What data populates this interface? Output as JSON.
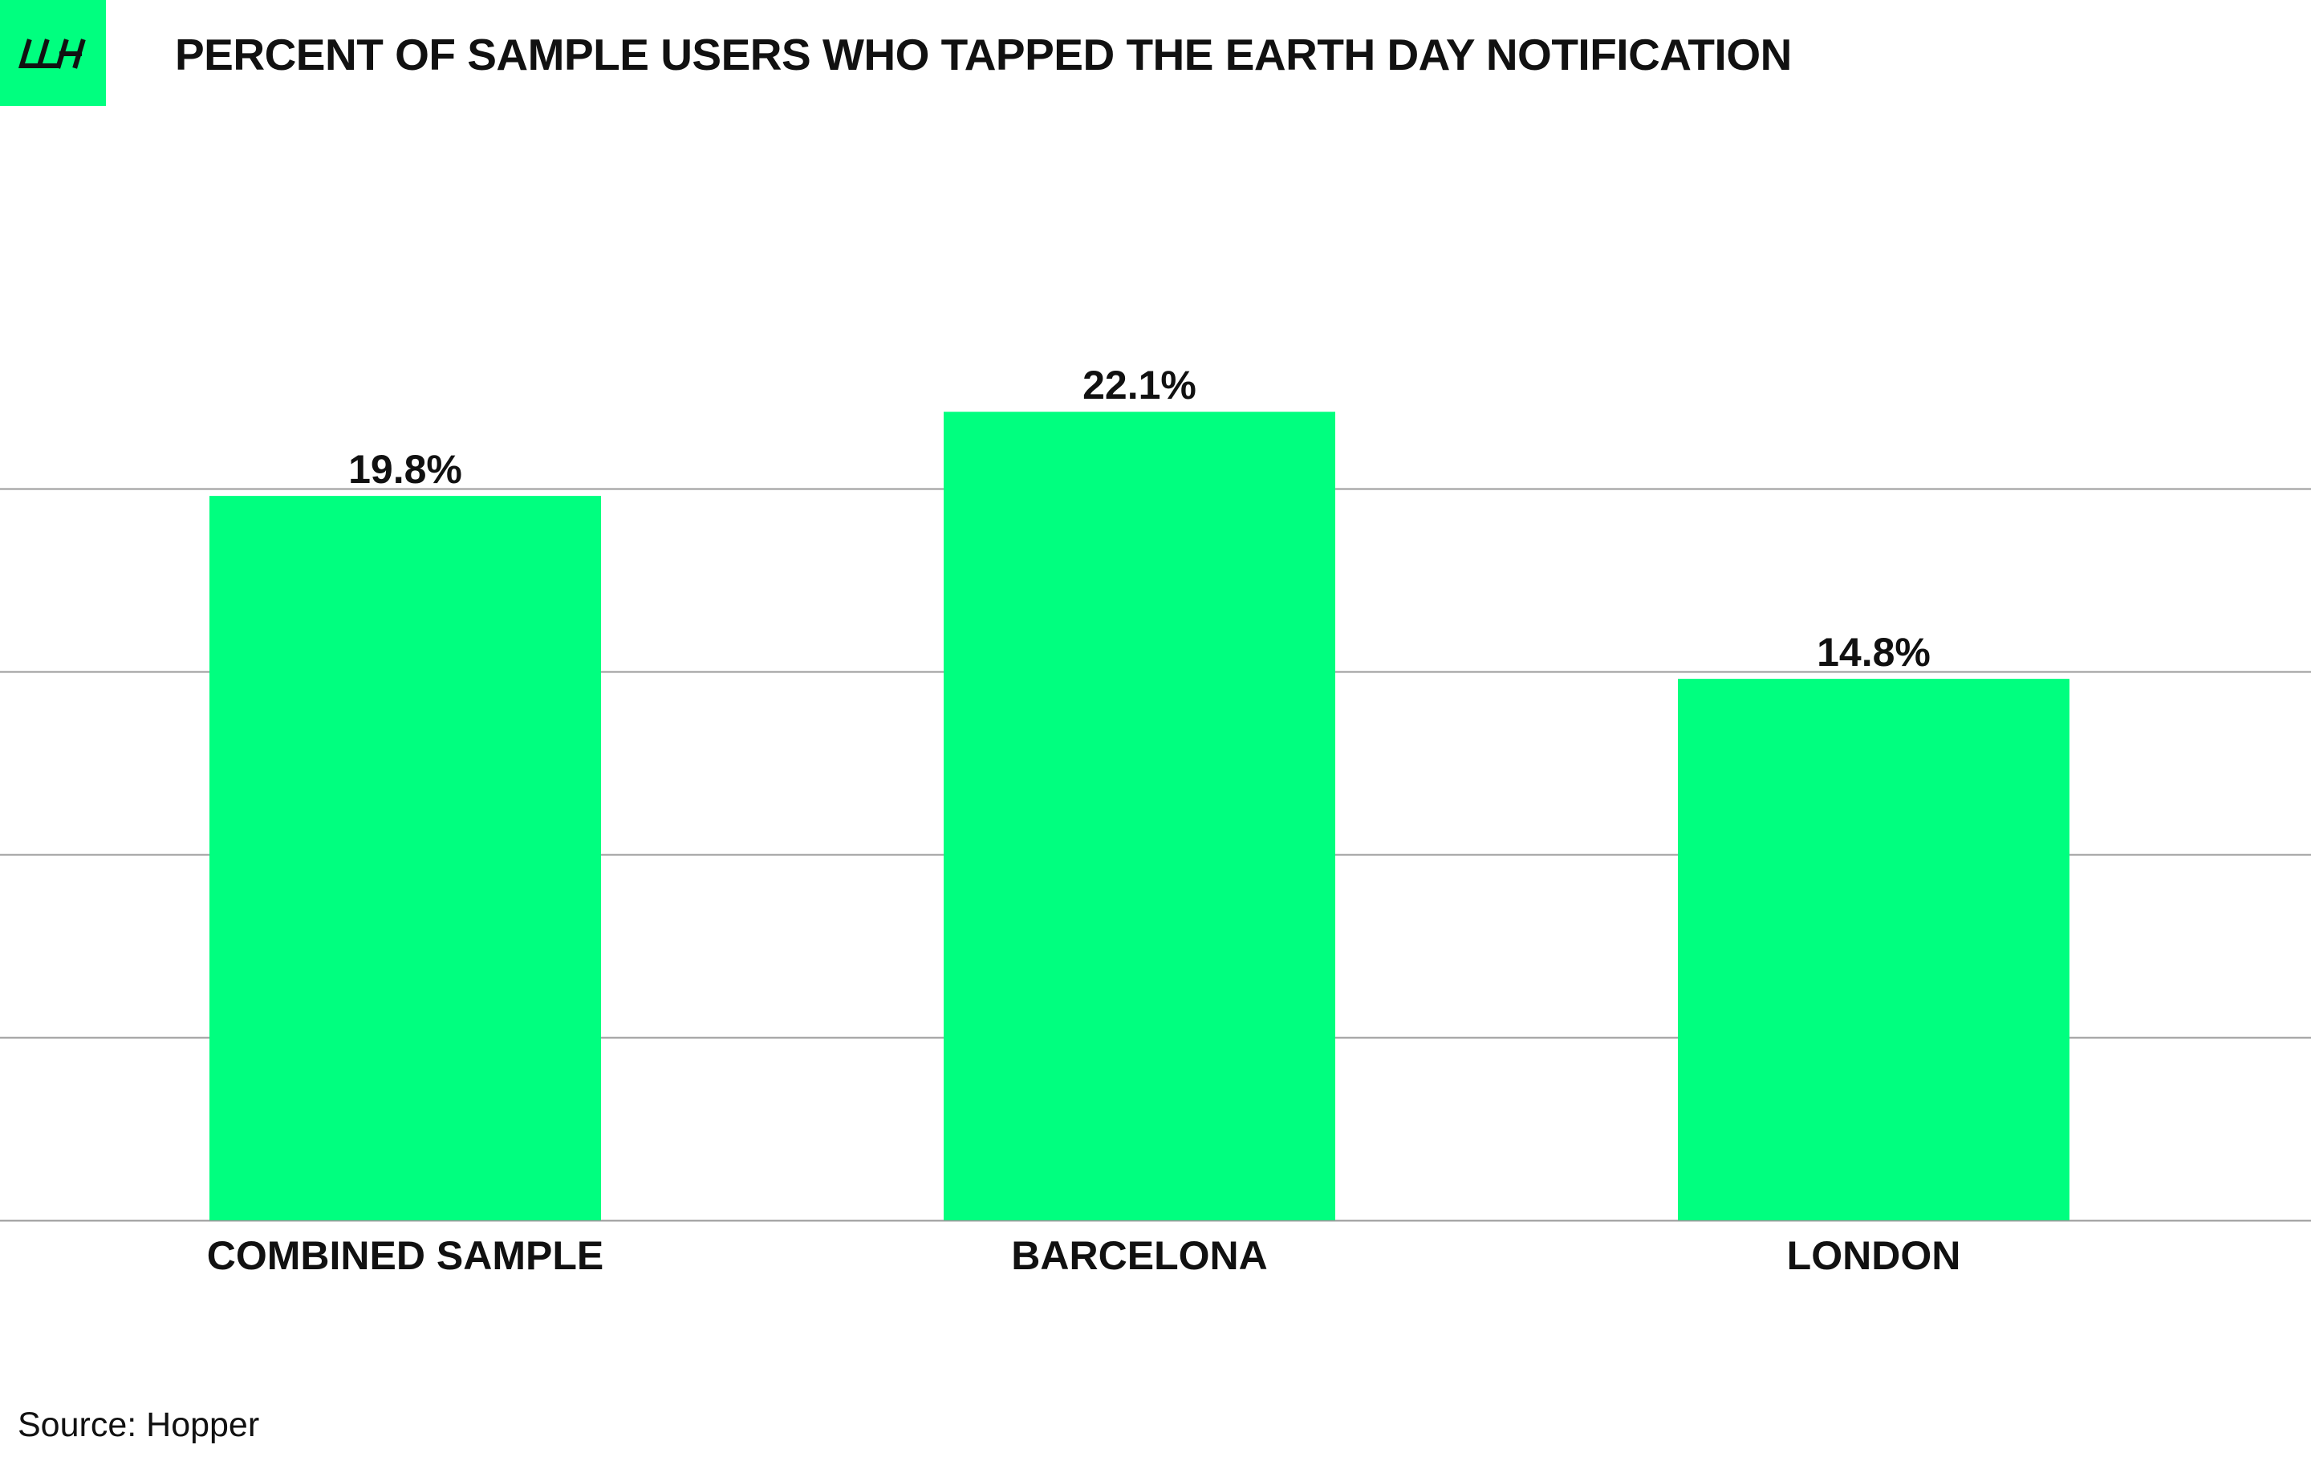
{
  "header": {
    "logo": "lh-logo",
    "logo_text": "LH",
    "title": "PERCENT OF SAMPLE USERS WHO TAPPED THE EARTH DAY NOTIFICATION"
  },
  "chart_data": {
    "type": "bar",
    "title": "PERCENT OF SAMPLE USERS WHO TAPPED THE EARTH DAY NOTIFICATION",
    "categories": [
      "COMBINED SAMPLE",
      "BARCELONA",
      "LONDON"
    ],
    "values": [
      19.8,
      22.1,
      14.8
    ],
    "value_labels": [
      "19.8%",
      "22.1%",
      "14.8%"
    ],
    "unit": "%",
    "xlabel": "",
    "ylabel": "",
    "ylim": [
      0,
      25
    ],
    "y_gridlines": [
      0,
      5,
      10,
      15,
      20
    ],
    "y_tick_labels_shown": false,
    "grid": true,
    "legend": "none",
    "bar_color": "#00ff7f",
    "grid_color": "#9a9a9a"
  },
  "footer": {
    "source": "Source: Hopper"
  },
  "colors": {
    "accent": "#00ff7f",
    "text": "#111111",
    "background": "#ffffff"
  }
}
